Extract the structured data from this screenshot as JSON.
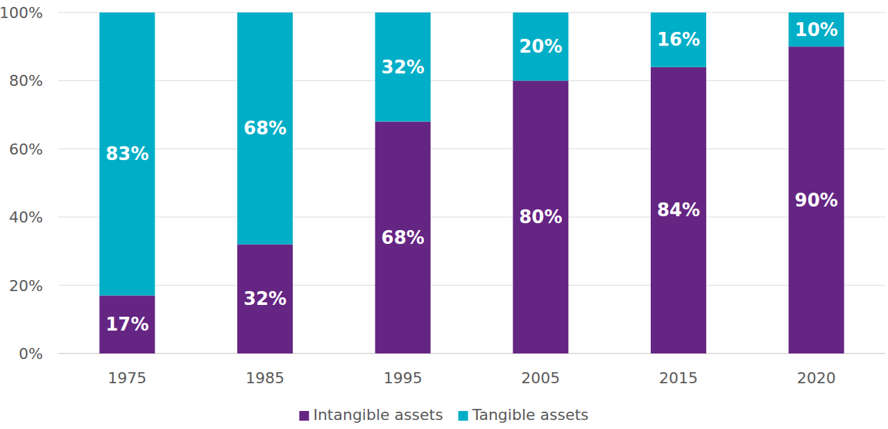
{
  "chart_data": {
    "type": "bar",
    "stacked": true,
    "data_labels": true,
    "grid": true,
    "legend": "bottom",
    "categories": [
      "1975",
      "1985",
      "1995",
      "2005",
      "2015",
      "2020"
    ],
    "series": [
      {
        "name": "Intangible assets",
        "color": "#652583",
        "values": [
          17,
          32,
          68,
          80,
          84,
          90
        ],
        "value_labels": [
          "17%",
          "32%",
          "68%",
          "80%",
          "84%",
          "90%"
        ]
      },
      {
        "name": "Tangible assets",
        "color": "#00aec7",
        "values": [
          83,
          68,
          32,
          20,
          16,
          10
        ],
        "value_labels": [
          "83%",
          "68%",
          "32%",
          "20%",
          "16%",
          "10%"
        ]
      }
    ],
    "ylim": [
      0,
      100
    ],
    "yticks": [
      {
        "value": 0,
        "label": "0%"
      },
      {
        "value": 20,
        "label": "20%"
      },
      {
        "value": 40,
        "label": "40%"
      },
      {
        "value": 60,
        "label": "60%"
      },
      {
        "value": 80,
        "label": "80%"
      },
      {
        "value": 100,
        "label": "100%"
      }
    ]
  }
}
